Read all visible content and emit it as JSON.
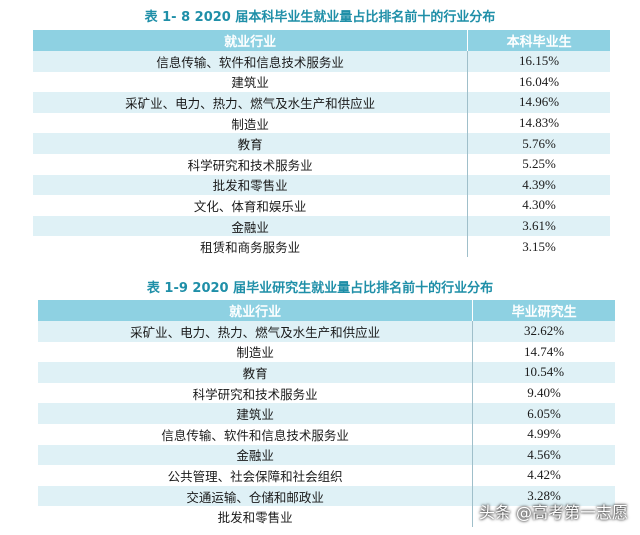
{
  "table1": {
    "caption": "表 1- 8   2020 届本科毕业生就业量占比排名前十的行业分布",
    "header_industry": "就业行业",
    "header_value": "本科毕业生",
    "rows": [
      {
        "industry": "信息传输、软件和信息技术服务业",
        "value": "16.15%"
      },
      {
        "industry": "建筑业",
        "value": "16.04%"
      },
      {
        "industry": "采矿业、电力、热力、燃气及水生产和供应业",
        "value": "14.96%"
      },
      {
        "industry": "制造业",
        "value": "14.83%"
      },
      {
        "industry": "教育",
        "value": "5.76%"
      },
      {
        "industry": "科学研究和技术服务业",
        "value": "5.25%"
      },
      {
        "industry": "批发和零售业",
        "value": "4.39%"
      },
      {
        "industry": "文化、体育和娱乐业",
        "value": "4.30%"
      },
      {
        "industry": "金融业",
        "value": "3.61%"
      },
      {
        "industry": "租赁和商务服务业",
        "value": "3.15%"
      }
    ]
  },
  "table2": {
    "caption": "表 1-9   2020 届毕业研究生就业量占比排名前十的行业分布",
    "header_industry": "就业行业",
    "header_value": "毕业研究生",
    "rows": [
      {
        "industry": "采矿业、电力、热力、燃气及水生产和供应业",
        "value": "32.62%"
      },
      {
        "industry": "制造业",
        "value": "14.74%"
      },
      {
        "industry": "教育",
        "value": "10.54%"
      },
      {
        "industry": "科学研究和技术服务业",
        "value": "9.40%"
      },
      {
        "industry": "建筑业",
        "value": "6.05%"
      },
      {
        "industry": "信息传输、软件和信息技术服务业",
        "value": "4.99%"
      },
      {
        "industry": "金融业",
        "value": "4.56%"
      },
      {
        "industry": "公共管理、社会保障和社会组织",
        "value": "4.42%"
      },
      {
        "industry": "交通运输、仓储和邮政业",
        "value": "3.28%"
      },
      {
        "industry": "批发和零售业",
        "value": ""
      }
    ]
  },
  "watermark": "头条 @高考第一志愿"
}
